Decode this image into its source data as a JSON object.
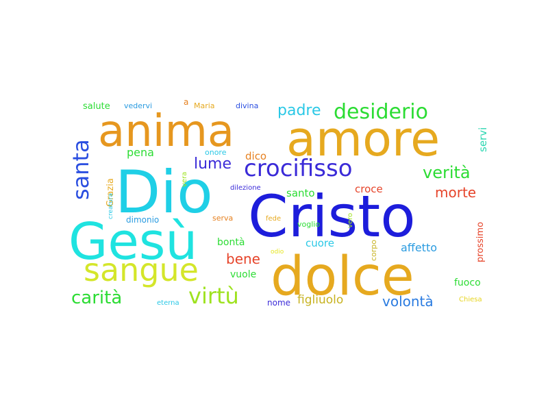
{
  "word_cloud": {
    "words": [
      {
        "text": "Cristo",
        "color": "#1d1ddb"
      },
      {
        "text": "Dio",
        "color": "#1fcfe6"
      },
      {
        "text": "Gesù",
        "color": "#1fe3e0"
      },
      {
        "text": "dolce",
        "color": "#e6a91f"
      },
      {
        "text": "amore",
        "color": "#e6a91f"
      },
      {
        "text": "anima",
        "color": "#e6971f"
      },
      {
        "text": "sangue",
        "color": "#d4e62a"
      },
      {
        "text": "crocifisso",
        "color": "#3b2bd8"
      },
      {
        "text": "desiderio",
        "color": "#2bdc33"
      },
      {
        "text": "virtù",
        "color": "#9ee21f"
      },
      {
        "text": "carità",
        "color": "#2bdc33"
      },
      {
        "text": "santa",
        "color": "#2a4ee0"
      },
      {
        "text": "verità",
        "color": "#2bdc33"
      },
      {
        "text": "volontà",
        "color": "#2a7be0"
      },
      {
        "text": "padre",
        "color": "#2ac8e6"
      },
      {
        "text": "lume",
        "color": "#3b2bd8"
      },
      {
        "text": "morte",
        "color": "#e6442a"
      },
      {
        "text": "bene",
        "color": "#e6442a"
      },
      {
        "text": "figliuolo",
        "color": "#c7b21f"
      },
      {
        "text": "affetto",
        "color": "#2a9be0"
      },
      {
        "text": "cuore",
        "color": "#2ac8e6"
      },
      {
        "text": "pena",
        "color": "#2bdc33"
      },
      {
        "text": "dico",
        "color": "#e6801f"
      },
      {
        "text": "santo",
        "color": "#2bdc33"
      },
      {
        "text": "croce",
        "color": "#e6442a"
      },
      {
        "text": "vuole",
        "color": "#2bdc33"
      },
      {
        "text": "bontà",
        "color": "#2bdc33"
      },
      {
        "text": "fuoco",
        "color": "#2bdc33"
      },
      {
        "text": "servi",
        "color": "#2ad6b0"
      },
      {
        "text": "prossimo",
        "color": "#e6442a"
      },
      {
        "text": "Grazia",
        "color": "#e6a91f"
      },
      {
        "text": "salute",
        "color": "#2bdc33"
      },
      {
        "text": "vedervi",
        "color": "#2a9be0"
      },
      {
        "text": "Maria",
        "color": "#e6a91f"
      },
      {
        "text": "divina",
        "color": "#2a4ee0"
      },
      {
        "text": "onore",
        "color": "#2ac8e6"
      },
      {
        "text": "dimonio",
        "color": "#2a9be0"
      },
      {
        "text": "serva",
        "color": "#e6801f"
      },
      {
        "text": "dilezione",
        "color": "#3b2bd8"
      },
      {
        "text": "creatura",
        "color": "#2ac8e6"
      },
      {
        "text": "vera",
        "color": "#9ee21f"
      },
      {
        "text": "fede",
        "color": "#e6a91f"
      },
      {
        "text": "voglio",
        "color": "#2bdc33"
      },
      {
        "text": "vero",
        "color": "#9ee21f"
      },
      {
        "text": "corpo",
        "color": "#c7b21f"
      },
      {
        "text": "odio",
        "color": "#e6e61f"
      },
      {
        "text": "nome",
        "color": "#3b2bd8"
      },
      {
        "text": "eterna",
        "color": "#2ac8e6"
      },
      {
        "text": "Chiesa",
        "color": "#e6d41f"
      },
      {
        "text": "a",
        "color": "#e6801f"
      }
    ]
  }
}
